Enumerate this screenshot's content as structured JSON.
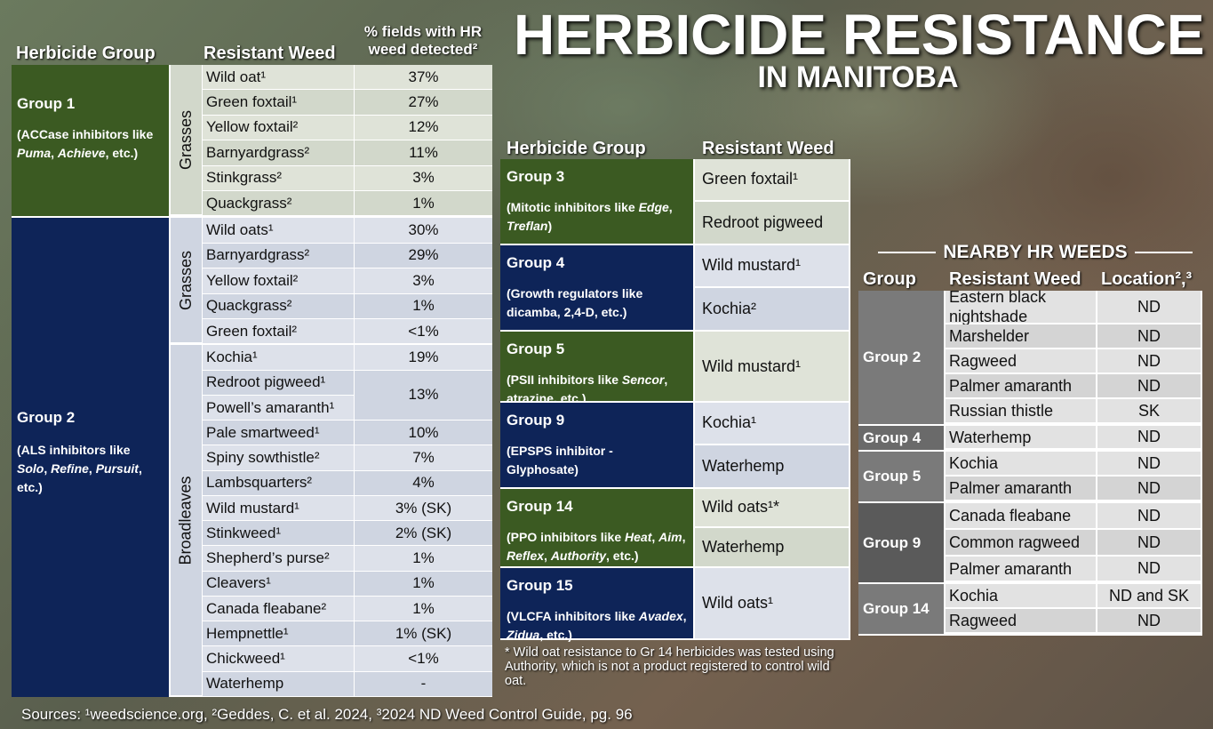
{
  "title": "HERBICIDE RESISTANCE",
  "subtitle": "IN MANITOBA",
  "left": {
    "h_group": "Herbicide Group",
    "h_weed": "Resistant Weed",
    "h_pct": "% fields with HR weed detected²",
    "g1_label": "Group 1",
    "g1_desc": "(ACCase inhibitors like Puma, Achieve, etc.)",
    "g2_label": "Group 2",
    "g2_desc": "(ALS inhibitors like Solo, Refine, Pursuit, etc.)",
    "grasses": "Grasses",
    "broadleaves": "Broadleaves",
    "g1_rows": [
      [
        "Wild oat¹",
        "37%"
      ],
      [
        "Green foxtail¹",
        "27%"
      ],
      [
        "Yellow foxtail²",
        "12%"
      ],
      [
        "Barnyardgrass²",
        "11%"
      ],
      [
        "Stinkgrass²",
        "3%"
      ],
      [
        "Quackgrass²",
        "1%"
      ]
    ],
    "g2_grass_rows": [
      [
        "Wild oats¹",
        "30%"
      ],
      [
        "Barnyardgrass²",
        "29%"
      ],
      [
        "Yellow foxtail²",
        "3%"
      ],
      [
        "Quackgrass²",
        "1%"
      ],
      [
        "Green foxtail²",
        "<1%"
      ]
    ],
    "g2_broad_rows": [
      [
        "Kochia¹",
        "19%"
      ],
      [
        "Redroot pigweed¹",
        ""
      ],
      [
        "Powell’s amaranth¹",
        "13%"
      ],
      [
        "Pale smartweed¹",
        "10%"
      ],
      [
        "Spiny sowthistle²",
        "7%"
      ],
      [
        "Lambsquarters²",
        "4%"
      ],
      [
        "Wild mustard¹",
        "3% (SK)"
      ],
      [
        "Stinkweed¹",
        "2% (SK)"
      ],
      [
        "Shepherd’s purse²",
        "1%"
      ],
      [
        "Cleavers¹",
        "1%"
      ],
      [
        "Canada fleabane²",
        "1%"
      ],
      [
        "Hempnettle¹",
        "1% (SK)"
      ],
      [
        "Chickweed¹",
        "<1%"
      ],
      [
        "Waterhemp",
        "-"
      ]
    ]
  },
  "mid": {
    "h_group": "Herbicide Group",
    "h_weed": "Resistant Weed",
    "groups": [
      {
        "label": "Group 3",
        "desc": "(Mitotic inhibitors like Edge, Treflan)",
        "weeds": [
          "Green foxtail¹",
          "Redroot pigweed"
        ]
      },
      {
        "label": "Group 4",
        "desc": "(Growth regulators like dicamba, 2,4-D, etc.)",
        "weeds": [
          "Wild mustard¹",
          "Kochia²"
        ]
      },
      {
        "label": "Group 5",
        "desc": "(PSII inhibitors like Sencor, atrazine, etc.)",
        "weeds": [
          "Wild mustard¹"
        ]
      },
      {
        "label": "Group 9",
        "desc": "(EPSPS inhibitor - Glyphosate)",
        "weeds": [
          "Kochia¹",
          "Waterhemp"
        ]
      },
      {
        "label": "Group 14",
        "desc": "(PPO inhibitors like Heat, Aim, Reflex, Authority, etc.)",
        "weeds": [
          "Wild oats¹*",
          "Waterhemp"
        ]
      },
      {
        "label": "Group 15",
        "desc": "(VLCFA inhibitors like Avadex, Zidua,  etc.)",
        "weeds": [
          "Wild oats¹"
        ]
      }
    ],
    "footnote": "* Wild oat resistance to Gr 14 herbicides was tested using Authority, which is not a product registered to control wild oat."
  },
  "right": {
    "heading": "NEARBY HR WEEDS",
    "h_group": "Group",
    "h_weed": "Resistant Weed",
    "h_loc": "Location²,³",
    "groups": [
      {
        "label": "Group 2",
        "rows": [
          [
            "Eastern black nightshade",
            "ND"
          ],
          [
            "Marshelder",
            "ND"
          ],
          [
            "Ragweed",
            "ND"
          ],
          [
            "Palmer amaranth",
            "ND"
          ],
          [
            "Russian thistle",
            "SK"
          ]
        ]
      },
      {
        "label": "Group 4",
        "rows": [
          [
            "Waterhemp",
            "ND"
          ]
        ]
      },
      {
        "label": "Group 5",
        "rows": [
          [
            "Kochia",
            "ND"
          ],
          [
            "Palmer amaranth",
            "ND"
          ]
        ]
      },
      {
        "label": "Group 9",
        "rows": [
          [
            "Canada fleabane",
            "ND"
          ],
          [
            "Common ragweed",
            "ND"
          ],
          [
            "Palmer amaranth",
            "ND"
          ]
        ]
      },
      {
        "label": "Group 14",
        "rows": [
          [
            "Kochia",
            "ND and SK"
          ],
          [
            "Ragweed",
            "ND"
          ]
        ]
      }
    ]
  },
  "sources": "Sources: ¹weedscience.org, ²Geddes, C. et al. 2024, ³2024 ND Weed Control Guide, pg. 96"
}
